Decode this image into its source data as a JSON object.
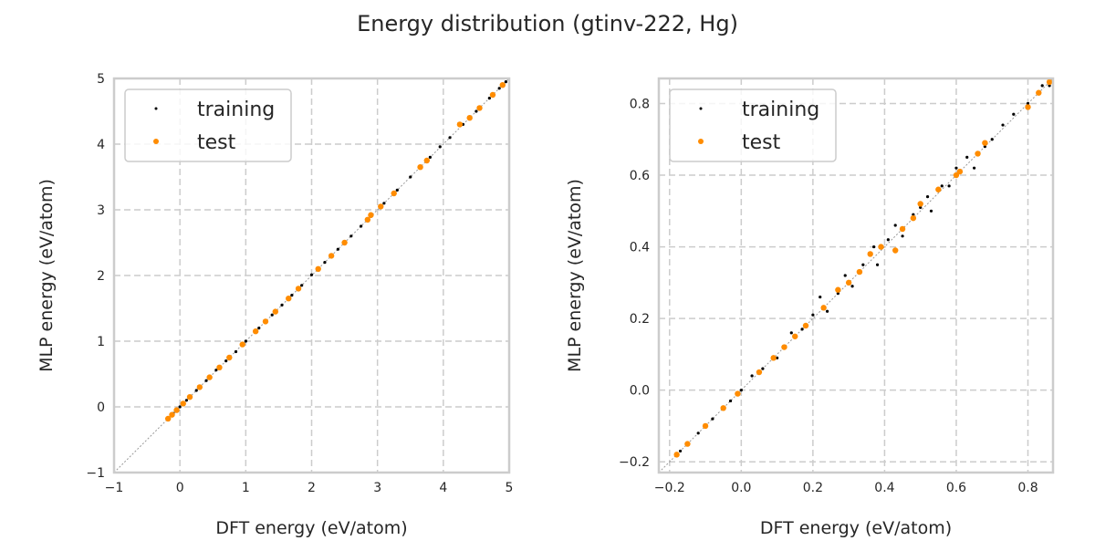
{
  "figure_title": "Energy distribution (gtinv-222, Hg)",
  "colors": {
    "training": "#000000",
    "test": "#ff8c00",
    "grid": "#cccccc",
    "diagonal": "#999999"
  },
  "chart_data": [
    {
      "type": "scatter",
      "xlabel": "DFT energy (eV/atom)",
      "ylabel": "MLP energy (eV/atom)",
      "xlim": [
        -1,
        5
      ],
      "ylim": [
        -1,
        5
      ],
      "xticks": [
        "−1",
        "0",
        "1",
        "2",
        "3",
        "4",
        "5"
      ],
      "xtick_values": [
        -1,
        0,
        1,
        2,
        3,
        4,
        5
      ],
      "yticks": [
        "−1",
        "0",
        "1",
        "2",
        "3",
        "4",
        "5"
      ],
      "ytick_values": [
        -1,
        0,
        1,
        2,
        3,
        4,
        5
      ],
      "grid": true,
      "legend_position": "top-left",
      "diagonal": true,
      "series": [
        {
          "name": "training",
          "points": [
            [
              -0.17,
              -0.17
            ],
            [
              -0.1,
              -0.1
            ],
            [
              0.0,
              0.0
            ],
            [
              0.1,
              0.1
            ],
            [
              0.25,
              0.25
            ],
            [
              0.4,
              0.4
            ],
            [
              0.55,
              0.56
            ],
            [
              0.7,
              0.7
            ],
            [
              0.85,
              0.84
            ],
            [
              1.0,
              1.0
            ],
            [
              1.2,
              1.2
            ],
            [
              1.4,
              1.4
            ],
            [
              1.55,
              1.55
            ],
            [
              1.7,
              1.7
            ],
            [
              1.85,
              1.85
            ],
            [
              2.0,
              2.01
            ],
            [
              2.2,
              2.2
            ],
            [
              2.4,
              2.4
            ],
            [
              2.6,
              2.6
            ],
            [
              2.75,
              2.75
            ],
            [
              2.9,
              2.9
            ],
            [
              3.1,
              3.1
            ],
            [
              3.3,
              3.3
            ],
            [
              3.5,
              3.5
            ],
            [
              3.65,
              3.65
            ],
            [
              3.8,
              3.8
            ],
            [
              3.95,
              3.96
            ],
            [
              4.1,
              4.1
            ],
            [
              4.3,
              4.3
            ],
            [
              4.5,
              4.5
            ],
            [
              4.7,
              4.7
            ],
            [
              4.85,
              4.85
            ],
            [
              4.95,
              4.95
            ]
          ]
        },
        {
          "name": "test",
          "points": [
            [
              -0.18,
              -0.18
            ],
            [
              -0.12,
              -0.12
            ],
            [
              -0.05,
              -0.05
            ],
            [
              0.05,
              0.05
            ],
            [
              0.15,
              0.15
            ],
            [
              0.3,
              0.3
            ],
            [
              0.45,
              0.45
            ],
            [
              0.6,
              0.6
            ],
            [
              0.75,
              0.75
            ],
            [
              0.95,
              0.95
            ],
            [
              1.15,
              1.15
            ],
            [
              1.3,
              1.3
            ],
            [
              1.45,
              1.45
            ],
            [
              1.65,
              1.65
            ],
            [
              1.8,
              1.8
            ],
            [
              2.1,
              2.1
            ],
            [
              2.3,
              2.3
            ],
            [
              2.5,
              2.5
            ],
            [
              2.85,
              2.85
            ],
            [
              2.9,
              2.92
            ],
            [
              3.05,
              3.05
            ],
            [
              3.25,
              3.25
            ],
            [
              3.65,
              3.65
            ],
            [
              3.75,
              3.75
            ],
            [
              4.25,
              4.3
            ],
            [
              4.4,
              4.4
            ],
            [
              4.55,
              4.55
            ],
            [
              4.75,
              4.75
            ],
            [
              4.9,
              4.9
            ]
          ]
        }
      ]
    },
    {
      "type": "scatter",
      "xlabel": "DFT energy (eV/atom)",
      "ylabel": "MLP energy (eV/atom)",
      "xlim": [
        -0.23,
        0.87
      ],
      "ylim": [
        -0.23,
        0.87
      ],
      "xticks": [
        "−0.2",
        "0.0",
        "0.2",
        "0.4",
        "0.6",
        "0.8"
      ],
      "xtick_values": [
        -0.2,
        0,
        0.2,
        0.4,
        0.6,
        0.8
      ],
      "yticks": [
        "−0.2",
        "0.0",
        "0.2",
        "0.4",
        "0.6",
        "0.8"
      ],
      "ytick_values": [
        -0.2,
        0,
        0.2,
        0.4,
        0.6,
        0.8
      ],
      "grid": true,
      "legend_position": "top-left",
      "diagonal": true,
      "series": [
        {
          "name": "training",
          "points": [
            [
              -0.17,
              -0.17
            ],
            [
              -0.12,
              -0.12
            ],
            [
              -0.08,
              -0.08
            ],
            [
              -0.03,
              -0.03
            ],
            [
              0.0,
              0.0
            ],
            [
              0.03,
              0.04
            ],
            [
              0.06,
              0.06
            ],
            [
              0.1,
              0.09
            ],
            [
              0.14,
              0.16
            ],
            [
              0.17,
              0.17
            ],
            [
              0.2,
              0.21
            ],
            [
              0.22,
              0.26
            ],
            [
              0.24,
              0.22
            ],
            [
              0.27,
              0.27
            ],
            [
              0.29,
              0.32
            ],
            [
              0.31,
              0.29
            ],
            [
              0.34,
              0.35
            ],
            [
              0.37,
              0.4
            ],
            [
              0.38,
              0.35
            ],
            [
              0.41,
              0.42
            ],
            [
              0.43,
              0.46
            ],
            [
              0.45,
              0.43
            ],
            [
              0.48,
              0.49
            ],
            [
              0.5,
              0.51
            ],
            [
              0.52,
              0.54
            ],
            [
              0.53,
              0.5
            ],
            [
              0.56,
              0.57
            ],
            [
              0.58,
              0.57
            ],
            [
              0.6,
              0.62
            ],
            [
              0.63,
              0.65
            ],
            [
              0.65,
              0.62
            ],
            [
              0.68,
              0.68
            ],
            [
              0.7,
              0.7
            ],
            [
              0.73,
              0.74
            ],
            [
              0.76,
              0.77
            ],
            [
              0.8,
              0.8
            ],
            [
              0.84,
              0.85
            ],
            [
              0.86,
              0.85
            ]
          ]
        },
        {
          "name": "test",
          "points": [
            [
              -0.18,
              -0.18
            ],
            [
              -0.15,
              -0.15
            ],
            [
              -0.1,
              -0.1
            ],
            [
              -0.05,
              -0.05
            ],
            [
              -0.01,
              -0.01
            ],
            [
              0.05,
              0.05
            ],
            [
              0.09,
              0.09
            ],
            [
              0.12,
              0.12
            ],
            [
              0.15,
              0.15
            ],
            [
              0.18,
              0.18
            ],
            [
              0.23,
              0.23
            ],
            [
              0.27,
              0.28
            ],
            [
              0.3,
              0.3
            ],
            [
              0.33,
              0.33
            ],
            [
              0.36,
              0.38
            ],
            [
              0.39,
              0.4
            ],
            [
              0.43,
              0.39
            ],
            [
              0.45,
              0.45
            ],
            [
              0.48,
              0.48
            ],
            [
              0.5,
              0.52
            ],
            [
              0.55,
              0.56
            ],
            [
              0.6,
              0.6
            ],
            [
              0.61,
              0.61
            ],
            [
              0.66,
              0.66
            ],
            [
              0.68,
              0.69
            ],
            [
              0.8,
              0.79
            ],
            [
              0.83,
              0.83
            ],
            [
              0.86,
              0.86
            ]
          ]
        }
      ]
    }
  ]
}
